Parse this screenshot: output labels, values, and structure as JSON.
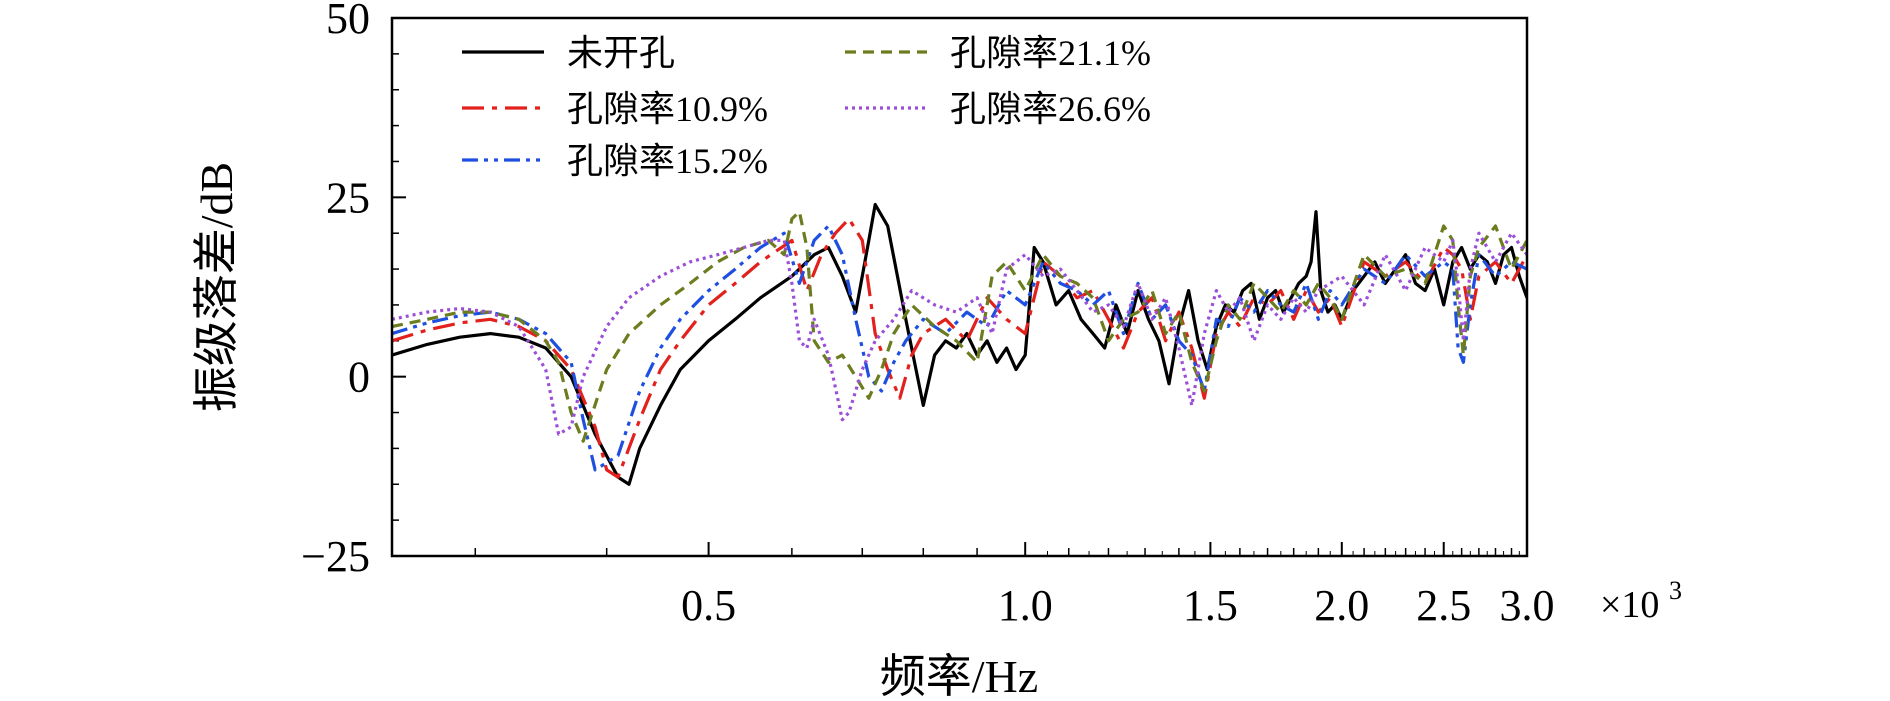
{
  "chart_data": {
    "type": "line",
    "xlabel": "频率/Hz",
    "ylabel": "振级落差/dB",
    "x_multiplier_label": "×10",
    "x_multiplier_exponent": "3",
    "xscale": "log",
    "xlim": [
      0.25,
      3.0
    ],
    "ylim": [
      -25,
      50
    ],
    "x_ticks": [
      {
        "value": 0.5,
        "label": "0.5"
      },
      {
        "value": 1.0,
        "label": "1.0"
      },
      {
        "value": 1.5,
        "label": "1.5"
      },
      {
        "value": 2.0,
        "label": "2.0"
      },
      {
        "value": 2.5,
        "label": "2.5"
      },
      {
        "value": 3.0,
        "label": "3.0"
      }
    ],
    "y_ticks": [
      {
        "value": 50,
        "label": "50"
      },
      {
        "value": 25,
        "label": "25"
      },
      {
        "value": 0,
        "label": "0"
      },
      {
        "value": -25,
        "label": "−25"
      }
    ],
    "legend_position": "top-left",
    "series": [
      {
        "name": "未开孔",
        "color": "#000000",
        "dash": "solid",
        "x": [
          0.25,
          0.27,
          0.29,
          0.31,
          0.33,
          0.35,
          0.37,
          0.39,
          0.41,
          0.42,
          0.43,
          0.45,
          0.47,
          0.5,
          0.53,
          0.56,
          0.6,
          0.63,
          0.65,
          0.67,
          0.69,
          0.71,
          0.72,
          0.74,
          0.77,
          0.8,
          0.82,
          0.84,
          0.86,
          0.88,
          0.9,
          0.92,
          0.94,
          0.96,
          0.98,
          1.0,
          1.02,
          1.04,
          1.07,
          1.1,
          1.13,
          1.16,
          1.19,
          1.22,
          1.25,
          1.28,
          1.31,
          1.34,
          1.37,
          1.4,
          1.43,
          1.46,
          1.49,
          1.52,
          1.55,
          1.58,
          1.61,
          1.64,
          1.67,
          1.7,
          1.73,
          1.76,
          1.79,
          1.82,
          1.85,
          1.87,
          1.89,
          1.91,
          1.94,
          1.97,
          2.0,
          2.05,
          2.1,
          2.15,
          2.2,
          2.25,
          2.3,
          2.35,
          2.4,
          2.45,
          2.5,
          2.55,
          2.6,
          2.65,
          2.7,
          2.75,
          2.8,
          2.85,
          2.9,
          2.95,
          3.0
        ],
        "values": [
          3,
          4.5,
          5.5,
          6,
          5.5,
          4,
          0,
          -8,
          -14,
          -15,
          -10,
          -4,
          1,
          5,
          8,
          11,
          14,
          17,
          18,
          14,
          9,
          19,
          24,
          21,
          8,
          -4,
          3,
          5,
          4,
          6,
          3,
          5,
          2,
          4,
          1,
          3,
          18,
          16,
          10,
          12,
          8,
          6,
          4,
          10,
          6,
          12,
          8,
          5,
          -1,
          7,
          12,
          5,
          1,
          7,
          10,
          9,
          12,
          13,
          8,
          11,
          12,
          9,
          11,
          13,
          14,
          16,
          23,
          12,
          9,
          10,
          8,
          12,
          14,
          16,
          13,
          15,
          17,
          13,
          12,
          15,
          10,
          16,
          18,
          15,
          17,
          16,
          13,
          17,
          18,
          14,
          11
        ]
      },
      {
        "name": "孔隙率10.9%",
        "color": "#e3211c",
        "dash": "dashdot",
        "x": [
          0.25,
          0.27,
          0.29,
          0.31,
          0.33,
          0.35,
          0.37,
          0.39,
          0.4,
          0.41,
          0.43,
          0.45,
          0.47,
          0.5,
          0.53,
          0.56,
          0.6,
          0.62,
          0.64,
          0.66,
          0.68,
          0.7,
          0.72,
          0.74,
          0.76,
          0.78,
          0.8,
          0.84,
          0.88,
          0.92,
          0.96,
          1.0,
          1.04,
          1.08,
          1.12,
          1.16,
          1.2,
          1.24,
          1.28,
          1.32,
          1.36,
          1.4,
          1.44,
          1.48,
          1.52,
          1.56,
          1.6,
          1.65,
          1.7,
          1.75,
          1.8,
          1.85,
          1.9,
          1.95,
          2.0,
          2.1,
          2.2,
          2.3,
          2.4,
          2.5,
          2.55,
          2.6,
          2.65,
          2.7,
          2.8,
          2.9,
          3.0
        ],
        "values": [
          5,
          6.5,
          7.5,
          8,
          7,
          5,
          1,
          -7,
          -13,
          -14,
          -6,
          1,
          5,
          10,
          13,
          16,
          19,
          12,
          17,
          20,
          22,
          19,
          6,
          1,
          -3,
          3,
          6,
          8,
          5,
          11,
          8,
          6,
          16,
          14,
          11,
          12,
          8,
          4,
          9,
          11,
          5,
          9,
          4,
          -3,
          6,
          9,
          7,
          11,
          10,
          12,
          8,
          12,
          9,
          11,
          7,
          16,
          14,
          16,
          13,
          18,
          17,
          15,
          8,
          14,
          16,
          13,
          17
        ]
      },
      {
        "name": "孔隙率15.2%",
        "color": "#1f4fe0",
        "dash": "dashdotdot",
        "x": [
          0.25,
          0.27,
          0.29,
          0.31,
          0.33,
          0.35,
          0.37,
          0.38,
          0.39,
          0.41,
          0.43,
          0.45,
          0.47,
          0.5,
          0.53,
          0.56,
          0.59,
          0.61,
          0.63,
          0.65,
          0.67,
          0.69,
          0.71,
          0.73,
          0.75,
          0.77,
          0.8,
          0.84,
          0.88,
          0.92,
          0.96,
          1.0,
          1.04,
          1.08,
          1.12,
          1.16,
          1.2,
          1.24,
          1.28,
          1.32,
          1.36,
          1.4,
          1.44,
          1.48,
          1.52,
          1.56,
          1.6,
          1.65,
          1.7,
          1.75,
          1.8,
          1.85,
          1.9,
          1.95,
          2.0,
          2.1,
          2.2,
          2.3,
          2.4,
          2.5,
          2.55,
          2.58,
          2.61,
          2.65,
          2.7,
          2.8,
          2.9,
          3.0
        ],
        "values": [
          6,
          7.5,
          8.5,
          9,
          8,
          6,
          2,
          -6,
          -13,
          -11,
          -2,
          4,
          8,
          12,
          15,
          18,
          20,
          13,
          19,
          21,
          17,
          8,
          0,
          -2,
          2,
          5,
          8,
          6,
          9,
          7,
          12,
          10,
          16,
          13,
          12,
          10,
          12,
          6,
          13,
          8,
          10,
          5,
          3,
          -2,
          8,
          7,
          11,
          9,
          12,
          10,
          9,
          13,
          8,
          12,
          10,
          15,
          13,
          17,
          14,
          16,
          15,
          4,
          2,
          10,
          17,
          14,
          16,
          15
        ]
      },
      {
        "name": "孔隙率21.1%",
        "color": "#6b7d1f",
        "dash": "dashed",
        "x": [
          0.25,
          0.27,
          0.29,
          0.31,
          0.33,
          0.35,
          0.36,
          0.37,
          0.38,
          0.4,
          0.42,
          0.45,
          0.48,
          0.51,
          0.54,
          0.57,
          0.59,
          0.6,
          0.61,
          0.62,
          0.63,
          0.65,
          0.67,
          0.69,
          0.71,
          0.73,
          0.75,
          0.78,
          0.82,
          0.86,
          0.9,
          0.93,
          0.96,
          1.0,
          1.04,
          1.08,
          1.12,
          1.16,
          1.2,
          1.24,
          1.28,
          1.32,
          1.36,
          1.4,
          1.44,
          1.48,
          1.52,
          1.56,
          1.6,
          1.65,
          1.7,
          1.75,
          1.8,
          1.85,
          1.9,
          1.95,
          2.0,
          2.1,
          2.2,
          2.3,
          2.4,
          2.5,
          2.55,
          2.58,
          2.61,
          2.65,
          2.7,
          2.8,
          2.9,
          3.0
        ],
        "values": [
          7,
          8,
          9,
          9,
          8,
          5,
          2,
          -5,
          -9,
          1,
          6,
          10,
          13,
          16,
          18,
          19,
          17,
          22,
          23,
          18,
          5,
          2,
          3,
          0,
          -3,
          1,
          6,
          10,
          7,
          5,
          2,
          14,
          16,
          12,
          17,
          14,
          13,
          11,
          5,
          8,
          9,
          12,
          6,
          9,
          2,
          -2,
          5,
          10,
          8,
          13,
          11,
          9,
          12,
          10,
          13,
          11,
          8,
          17,
          14,
          15,
          13,
          21,
          19,
          10,
          3,
          14,
          18,
          21,
          15,
          19
        ]
      },
      {
        "name": "孔隙率26.6%",
        "color": "#9b4fd8",
        "dash": "dotted",
        "x": [
          0.25,
          0.27,
          0.29,
          0.31,
          0.33,
          0.34,
          0.35,
          0.36,
          0.37,
          0.38,
          0.4,
          0.42,
          0.45,
          0.48,
          0.51,
          0.54,
          0.57,
          0.59,
          0.6,
          0.61,
          0.62,
          0.63,
          0.65,
          0.67,
          0.68,
          0.7,
          0.72,
          0.75,
          0.78,
          0.82,
          0.86,
          0.9,
          0.93,
          0.96,
          1.0,
          1.04,
          1.08,
          1.12,
          1.16,
          1.2,
          1.24,
          1.28,
          1.32,
          1.36,
          1.4,
          1.44,
          1.48,
          1.52,
          1.56,
          1.6,
          1.65,
          1.7,
          1.75,
          1.8,
          1.85,
          1.9,
          1.95,
          2.0,
          2.1,
          2.2,
          2.3,
          2.4,
          2.5,
          2.55,
          2.58,
          2.61,
          2.65,
          2.7,
          2.8,
          2.9,
          3.0
        ],
        "values": [
          8,
          9,
          9.5,
          9,
          7,
          4,
          1,
          -8,
          -7,
          0,
          7,
          11,
          14,
          16,
          17,
          18,
          19,
          19,
          13,
          5,
          4,
          8,
          3,
          -6,
          -5,
          1,
          5,
          8,
          12,
          10,
          9,
          11,
          6,
          15,
          17,
          14,
          15,
          12,
          9,
          10,
          7,
          13,
          8,
          11,
          4,
          -4,
          6,
          12,
          9,
          11,
          5,
          10,
          8,
          11,
          9,
          12,
          13,
          14,
          10,
          17,
          12,
          18,
          16,
          19,
          13,
          5,
          15,
          20,
          16,
          20,
          17
        ]
      }
    ]
  }
}
